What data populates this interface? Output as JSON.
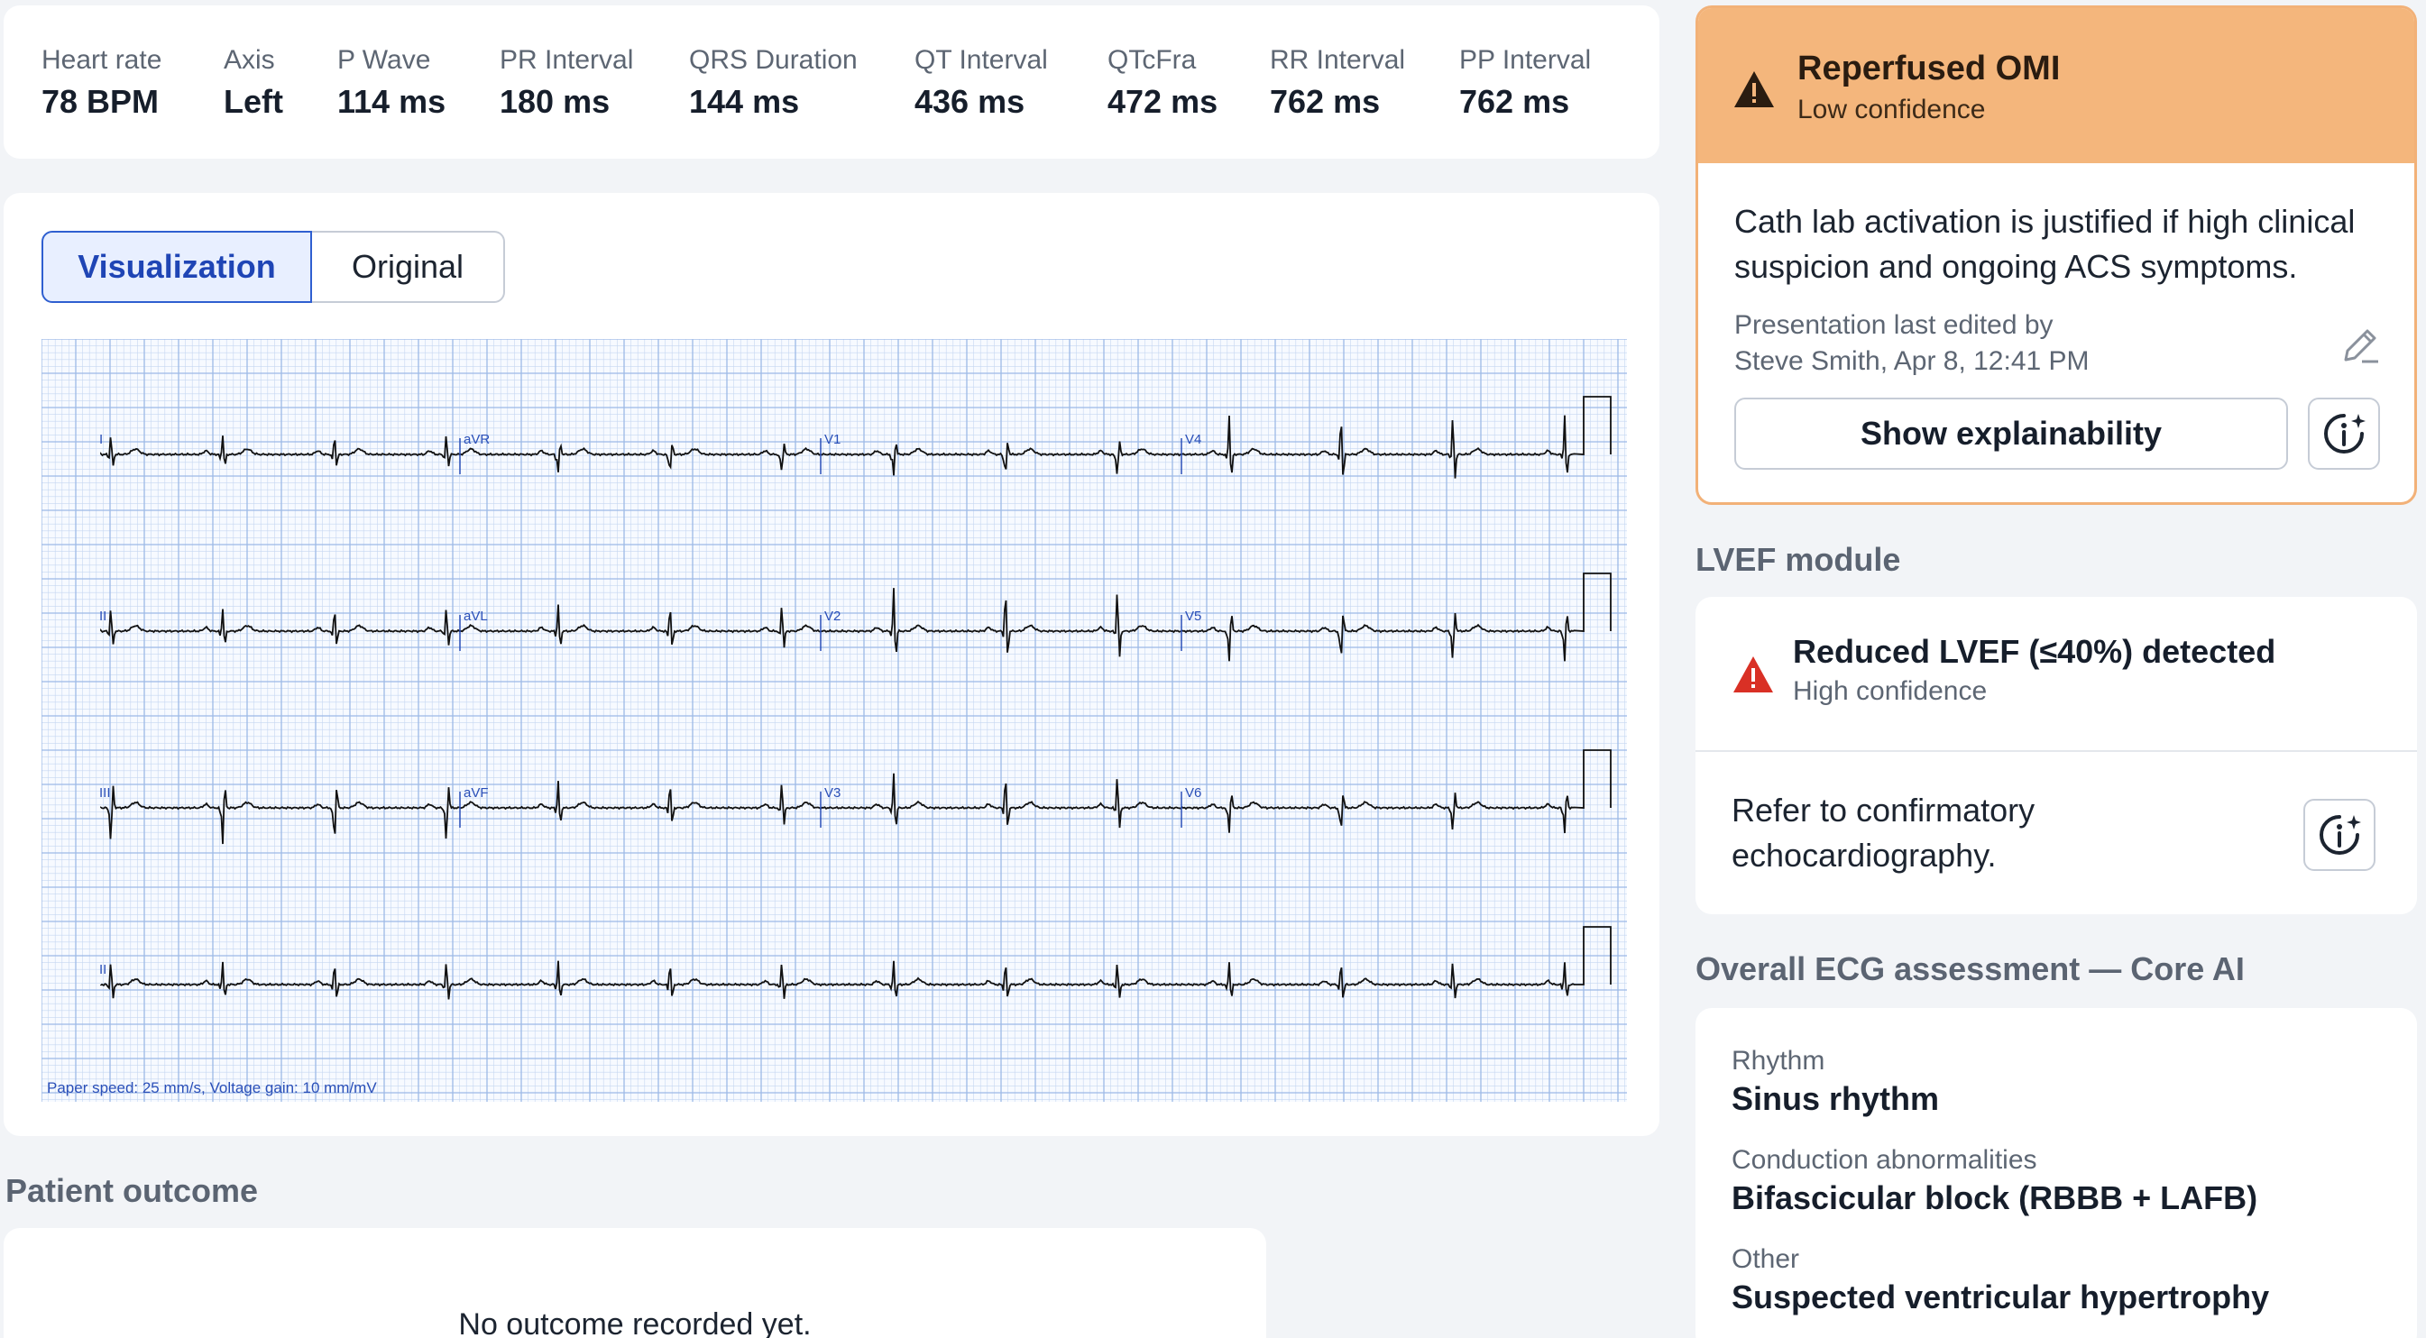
{
  "metrics": [
    {
      "label": "Heart rate",
      "value": "78 BPM"
    },
    {
      "label": "Axis",
      "value": "Left"
    },
    {
      "label": "P Wave",
      "value": "114 ms"
    },
    {
      "label": "PR Interval",
      "value": "180 ms"
    },
    {
      "label": "QRS Duration",
      "value": "144 ms"
    },
    {
      "label": "QT Interval",
      "value": "436 ms"
    },
    {
      "label": "QTcFra",
      "value": "472 ms"
    },
    {
      "label": "RR Interval",
      "value": "762 ms"
    },
    {
      "label": "PP Interval",
      "value": "762 ms"
    }
  ],
  "view_toggle": {
    "active": "Visualization",
    "inactive": "Original"
  },
  "ecg": {
    "leads_row1": [
      "I",
      "aVR",
      "V1",
      "V4"
    ],
    "leads_row2": [
      "II",
      "aVL",
      "V2",
      "V5"
    ],
    "leads_row3": [
      "III",
      "aVF",
      "V3",
      "V6"
    ],
    "leads_row4": [
      "II"
    ],
    "footer": "Paper speed: 25 mm/s, Voltage gain: 10 mm/mV",
    "grid_color": "#9db9e6",
    "trace_color": "#111111",
    "label_color": "#2a4fb8"
  },
  "patient_outcome": {
    "title": "Patient outcome",
    "empty_text": "No outcome recorded yet."
  },
  "omi": {
    "title": "Reperfused OMI",
    "confidence": "Low confidence",
    "body": "Cath lab activation is justified if high clinical suspicion and ongoing ACS symptoms.",
    "edited_line1": "Presentation last edited by",
    "edited_line2": "Steve Smith, Apr 8, 12:41 PM",
    "explain_button": "Show explainability",
    "header_color": "#f4b67c",
    "icon": "warning-triangle-icon"
  },
  "lvef": {
    "section_title": "LVEF module",
    "title": "Reduced LVEF (≤40%) detected",
    "confidence": "High confidence",
    "body": "Refer to confirmatory echocardiography.",
    "alert_color": "#d93025",
    "icon": "warning-triangle-icon"
  },
  "assessment": {
    "section_title": "Overall ECG assessment — Core AI",
    "items": [
      {
        "label": "Rhythm",
        "value": "Sinus rhythm"
      },
      {
        "label": "Conduction abnormalities",
        "value": "Bifascicular block (RBBB + LAFB)"
      },
      {
        "label": "Other",
        "value": "Suspected ventricular hypertrophy"
      }
    ]
  }
}
